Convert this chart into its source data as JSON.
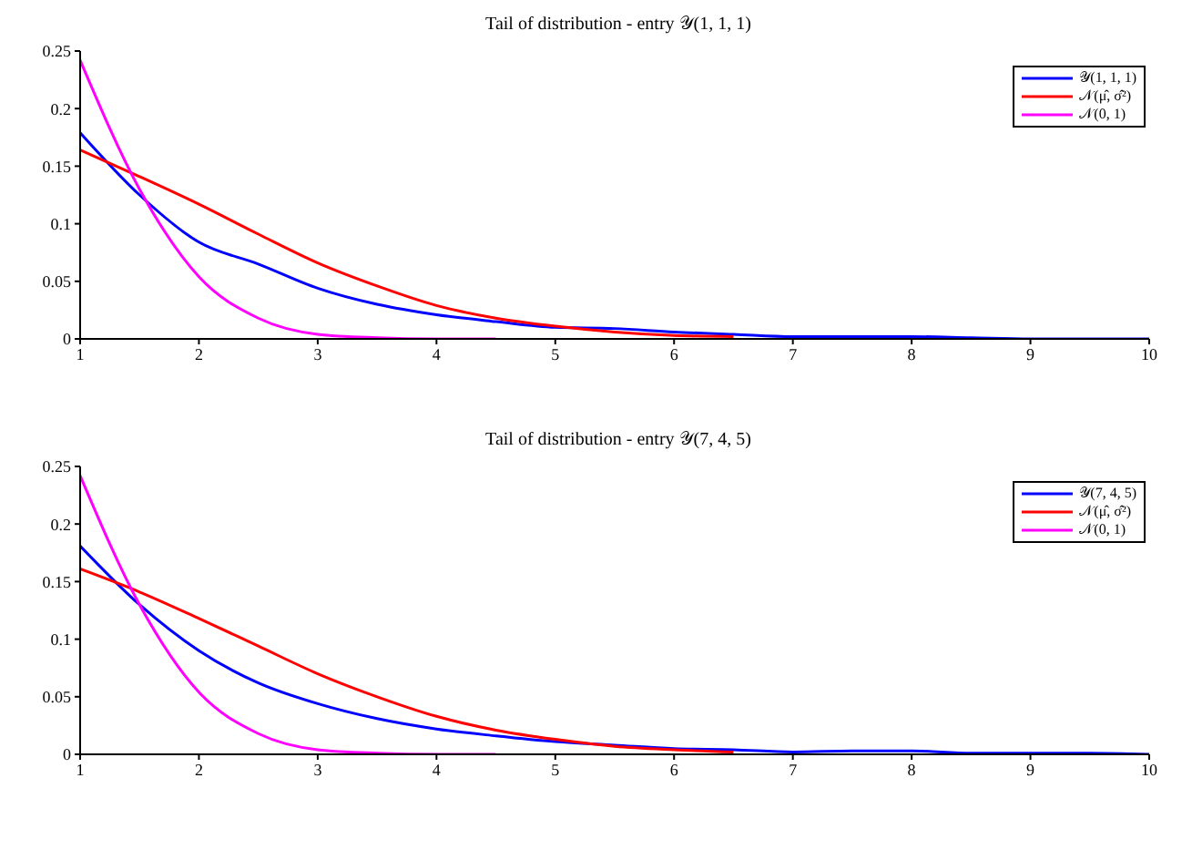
{
  "chart_data": [
    {
      "type": "line",
      "title": "Tail of distribution - entry 𝒴(1, 1, 1)",
      "x": [
        1,
        1.5,
        2,
        2.5,
        3,
        3.5,
        4,
        4.5,
        5,
        5.5,
        6,
        6.5,
        7,
        7.5,
        8,
        8.5,
        9,
        9.5,
        10
      ],
      "xlim": [
        1,
        10
      ],
      "xticks": [
        1,
        2,
        3,
        4,
        5,
        6,
        7,
        8,
        9,
        10
      ],
      "ylim": [
        0,
        0.25
      ],
      "yticks": [
        0,
        0.05,
        0.1,
        0.15,
        0.2,
        0.25
      ],
      "legend": "top right",
      "grid": false,
      "marker": "none",
      "line_style": "solid",
      "series": [
        {
          "name": "𝒴(1, 1, 1)",
          "color": "#0000ff",
          "values": [
            0.179,
            0.125,
            0.084,
            0.065,
            0.044,
            0.03,
            0.021,
            0.015,
            0.01,
            0.009,
            0.006,
            0.004,
            0.002,
            0.002,
            0.002,
            0.001,
            0,
            0,
            0
          ]
        },
        {
          "name": "𝒩(μ̂, σ̂²)",
          "color": "#ff0000",
          "values": [
            0.164,
            0.141,
            0.117,
            0.091,
            0.066,
            0.046,
            0.029,
            0.018,
            0.011,
            0.006,
            0.003,
            0.002,
            null,
            null,
            null,
            null,
            null,
            null,
            null
          ]
        },
        {
          "name": "𝒩(0, 1)",
          "color": "#ff00ff",
          "values": [
            0.242,
            0.13,
            0.054,
            0.018,
            0.004,
            0.001,
            0,
            0,
            null,
            null,
            null,
            null,
            null,
            null,
            null,
            null,
            null,
            null,
            null
          ]
        }
      ]
    },
    {
      "type": "line",
      "title": "Tail of distribution - entry 𝒴(7, 4, 5)",
      "x": [
        1,
        1.5,
        2,
        2.5,
        3,
        3.5,
        4,
        4.5,
        5,
        5.5,
        6,
        6.5,
        7,
        7.5,
        8,
        8.5,
        9,
        9.5,
        10
      ],
      "xlim": [
        1,
        10
      ],
      "xticks": [
        1,
        2,
        3,
        4,
        5,
        6,
        7,
        8,
        9,
        10
      ],
      "ylim": [
        0,
        0.25
      ],
      "yticks": [
        0,
        0.05,
        0.1,
        0.15,
        0.2,
        0.25
      ],
      "legend": "top right",
      "grid": false,
      "marker": "none",
      "line_style": "solid",
      "series": [
        {
          "name": "𝒴(7, 4, 5)",
          "color": "#0000ff",
          "values": [
            0.181,
            0.13,
            0.09,
            0.062,
            0.044,
            0.031,
            0.022,
            0.016,
            0.011,
            0.008,
            0.005,
            0.004,
            0.002,
            0.003,
            0.003,
            0.001,
            0.001,
            0.001,
            0
          ]
        },
        {
          "name": "𝒩(μ̂, σ̂²)",
          "color": "#ff0000",
          "values": [
            0.161,
            0.141,
            0.118,
            0.094,
            0.07,
            0.05,
            0.033,
            0.021,
            0.013,
            0.007,
            0.004,
            0.002,
            null,
            null,
            null,
            null,
            null,
            null,
            null
          ]
        },
        {
          "name": "𝒩(0, 1)",
          "color": "#ff00ff",
          "values": [
            0.242,
            0.13,
            0.054,
            0.018,
            0.004,
            0.001,
            0,
            0,
            null,
            null,
            null,
            null,
            null,
            null,
            null,
            null,
            null,
            null,
            null
          ]
        }
      ]
    }
  ]
}
